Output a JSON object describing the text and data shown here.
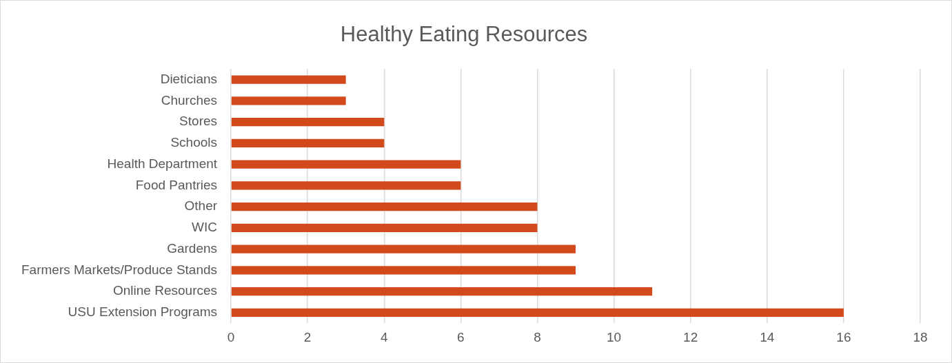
{
  "chart_data": {
    "type": "bar",
    "orientation": "horizontal",
    "title": "Healthy Eating Resources",
    "categories": [
      "Dieticians",
      "Churches",
      "Stores",
      "Schools",
      "Health Department",
      "Food Pantries",
      "Other",
      "WIC",
      "Gardens",
      "Farmers Markets/Produce Stands",
      "Online Resources",
      "USU Extension Programs"
    ],
    "values": [
      3,
      3,
      4,
      4,
      6,
      6,
      8,
      8,
      9,
      9,
      11,
      16
    ],
    "color": "#d24a1c",
    "xlim": [
      0,
      18
    ],
    "xticks": [
      0,
      2,
      4,
      6,
      8,
      10,
      12,
      14,
      16,
      18
    ],
    "grid": "x",
    "legend": false
  }
}
